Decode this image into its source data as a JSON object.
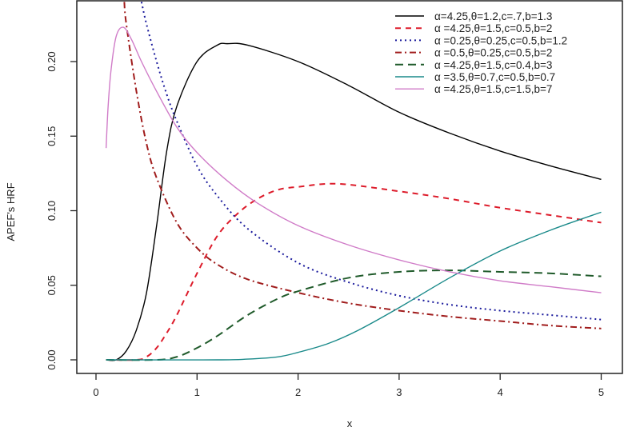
{
  "chart_data": {
    "type": "line",
    "title": "",
    "xlabel": "x",
    "ylabel": "APEF's HRF",
    "xlim": [
      0,
      5
    ],
    "ylim": [
      0,
      0.235
    ],
    "xticks": [
      "0",
      "1",
      "2",
      "3",
      "4",
      "5"
    ],
    "yticks": [
      "0.00",
      "0.05",
      "0.10",
      "0.15",
      "0.20"
    ],
    "grid": false,
    "legend_position": "top-right",
    "series": [
      {
        "name": "α=4.25,θ=1.2,c=.7,b=1.3",
        "color": "#000000",
        "dash": "",
        "x": [
          0.1,
          0.2,
          0.3,
          0.4,
          0.5,
          0.6,
          0.7,
          0.8,
          1.0,
          1.2,
          1.3,
          1.5,
          2,
          2.5,
          3,
          3.5,
          4,
          4.5,
          5
        ],
        "y": [
          0,
          0,
          0.006,
          0.02,
          0.045,
          0.09,
          0.14,
          0.17,
          0.2,
          0.211,
          0.212,
          0.211,
          0.2,
          0.184,
          0.166,
          0.152,
          0.14,
          0.13,
          0.121
        ]
      },
      {
        "name": "α =4.25,θ=1.5,c=0.5,b=2",
        "color": "#dd1c2b",
        "dash": "7,6",
        "x": [
          0.1,
          0.4,
          0.5,
          0.6,
          0.7,
          0.8,
          1.0,
          1.2,
          1.4,
          1.6,
          1.8,
          2,
          2.4,
          3,
          3.5,
          4,
          4.5,
          5
        ],
        "y": [
          0,
          0,
          0.002,
          0.008,
          0.018,
          0.03,
          0.058,
          0.083,
          0.098,
          0.108,
          0.114,
          0.116,
          0.118,
          0.113,
          0.108,
          0.102,
          0.097,
          0.092
        ]
      },
      {
        "name": "α =0.25,θ=0.25,c=0.5,b=1.2",
        "color": "#1a1a9c",
        "dash": "2,4",
        "x": [
          0.45,
          0.5,
          0.6,
          0.7,
          0.8,
          1.0,
          1.2,
          1.5,
          2,
          2.5,
          3,
          3.5,
          4,
          4.5,
          5
        ],
        "y": [
          0.24,
          0.225,
          0.2,
          0.178,
          0.16,
          0.13,
          0.11,
          0.088,
          0.065,
          0.052,
          0.043,
          0.037,
          0.033,
          0.03,
          0.027
        ]
      },
      {
        "name": "α =0.5,θ=0.25,c=0.5,b=2",
        "color": "#a01c1c",
        "dash": "8,4,2,4",
        "x": [
          0.28,
          0.3,
          0.4,
          0.5,
          0.6,
          0.8,
          1.0,
          1.2,
          1.5,
          2,
          2.5,
          3,
          3.5,
          4,
          4.5,
          5
        ],
        "y": [
          0.24,
          0.225,
          0.18,
          0.145,
          0.122,
          0.092,
          0.075,
          0.064,
          0.054,
          0.045,
          0.038,
          0.033,
          0.029,
          0.026,
          0.023,
          0.021
        ]
      },
      {
        "name": "α =4.25,θ=1.5,c=0.4,b=3",
        "color": "#1f5a2a",
        "dash": "10,6",
        "x": [
          0.1,
          0.6,
          0.8,
          1.0,
          1.2,
          1.5,
          1.8,
          2,
          2.5,
          3,
          3.5,
          4,
          4.5,
          5
        ],
        "y": [
          0,
          0,
          0.002,
          0.008,
          0.016,
          0.03,
          0.041,
          0.046,
          0.055,
          0.059,
          0.06,
          0.059,
          0.058,
          0.056
        ]
      },
      {
        "name": "α =3.5,θ=0.7,c=0.5,b=0.7",
        "color": "#1a8a8a",
        "dash": "",
        "x": [
          0.1,
          1.2,
          1.5,
          1.8,
          2,
          2.3,
          2.6,
          3,
          3.5,
          4,
          4.5,
          5
        ],
        "y": [
          0,
          0,
          0.0005,
          0.002,
          0.005,
          0.011,
          0.02,
          0.035,
          0.055,
          0.073,
          0.087,
          0.099
        ]
      },
      {
        "name": "α =4.25,θ=1.5,c=1.5,b=7",
        "color": "#d07cc8",
        "dash": "",
        "x": [
          0.1,
          0.12,
          0.15,
          0.2,
          0.27,
          0.35,
          0.45,
          0.6,
          0.8,
          1.0,
          1.3,
          1.6,
          2,
          2.5,
          3,
          3.5,
          4,
          4.5,
          5
        ],
        "y": [
          0.142,
          0.17,
          0.195,
          0.217,
          0.223,
          0.215,
          0.2,
          0.18,
          0.156,
          0.139,
          0.12,
          0.105,
          0.09,
          0.077,
          0.067,
          0.059,
          0.053,
          0.049,
          0.045
        ]
      }
    ]
  }
}
